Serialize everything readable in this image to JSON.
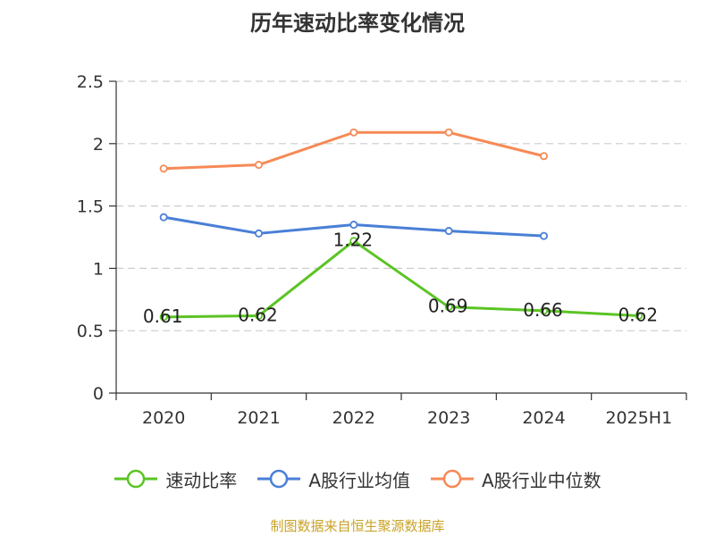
{
  "chart_data": {
    "type": "line",
    "title": "历年速动比率变化情况",
    "categories": [
      "2020",
      "2021",
      "2022",
      "2023",
      "2024",
      "2025H1"
    ],
    "ylim": [
      0,
      2.5
    ],
    "yticks": [
      "0",
      "0.5",
      "1",
      "1.5",
      "2",
      "2.5"
    ],
    "series": [
      {
        "name": "速动比率",
        "color": "#5bc424",
        "values": [
          0.61,
          0.62,
          1.22,
          0.69,
          0.66,
          0.62
        ],
        "labels": [
          "0.61",
          "0.62",
          "1.22",
          "0.69",
          "0.66",
          "0.62"
        ]
      },
      {
        "name": "A股行业均值",
        "color": "#4a7fd6",
        "values": [
          1.41,
          1.28,
          1.35,
          1.3,
          1.26,
          null
        ]
      },
      {
        "name": "A股行业中位数",
        "color": "#f68a56",
        "values": [
          1.8,
          1.83,
          2.09,
          2.09,
          1.9,
          null
        ]
      }
    ],
    "grid": true,
    "legend_position": "bottom"
  },
  "source": "制图数据来自恒生聚源数据库"
}
